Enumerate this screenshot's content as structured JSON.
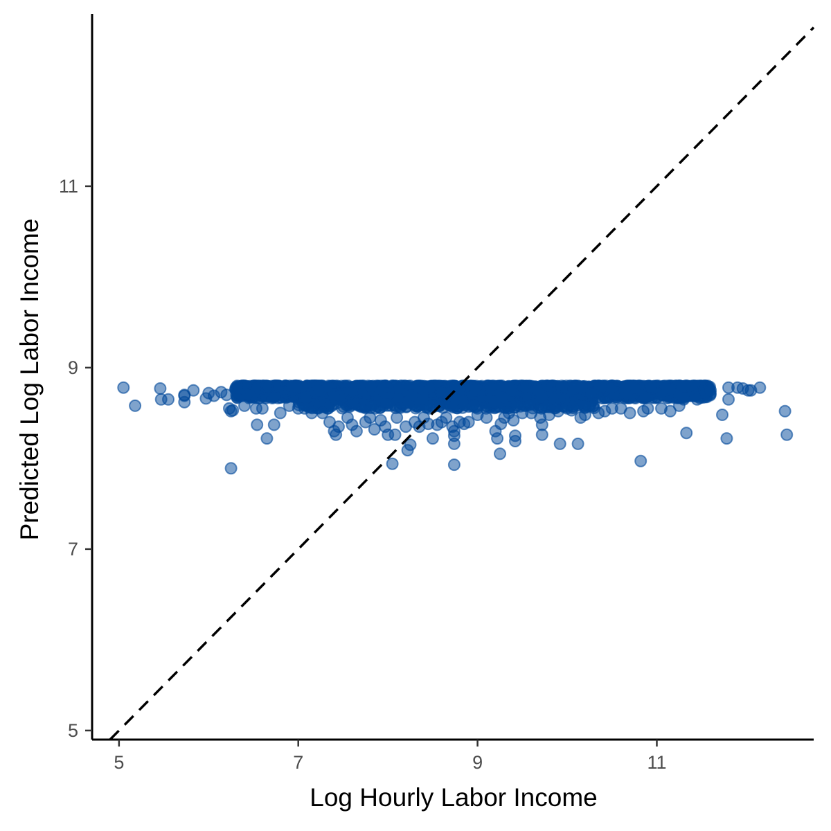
{
  "chart_data": {
    "type": "scatter",
    "title": "",
    "xlabel": "Log Hourly Labor Income",
    "ylabel": "Predicted Log Labor Income",
    "xlim": [
      4.7,
      12.75
    ],
    "ylim": [
      4.9,
      12.9
    ],
    "x_ticks": [
      5,
      7,
      9,
      11
    ],
    "y_ticks": [
      5,
      7,
      9,
      11
    ],
    "grid": false,
    "legend": "none",
    "point_color": "#00479a",
    "point_opacity": 0.5,
    "reference_line": {
      "type": "identity",
      "style": "dashed",
      "color": "#000000"
    },
    "dense_band": {
      "x_min": 6.3,
      "x_max": 11.6,
      "y_min": 8.55,
      "y_max": 8.8,
      "count": 2200
    },
    "points": [
      [
        5.05,
        8.78
      ],
      [
        5.18,
        8.58
      ],
      [
        5.46,
        8.77
      ],
      [
        5.47,
        8.65
      ],
      [
        5.55,
        8.65
      ],
      [
        5.73,
        8.69
      ],
      [
        5.73,
        8.62
      ],
      [
        5.73,
        8.7
      ],
      [
        5.83,
        8.75
      ],
      [
        5.97,
        8.66
      ],
      [
        6.0,
        8.72
      ],
      [
        6.06,
        8.69
      ],
      [
        6.14,
        8.73
      ],
      [
        6.2,
        8.7
      ],
      [
        6.23,
        8.55
      ],
      [
        6.25,
        8.52
      ],
      [
        6.25,
        7.89
      ],
      [
        6.27,
        8.53
      ],
      [
        6.33,
        8.78
      ],
      [
        6.4,
        8.58
      ],
      [
        6.53,
        8.55
      ],
      [
        6.54,
        8.37
      ],
      [
        6.6,
        8.55
      ],
      [
        6.65,
        8.22
      ],
      [
        6.73,
        8.37
      ],
      [
        6.8,
        8.5
      ],
      [
        6.9,
        8.58
      ],
      [
        7.0,
        8.55
      ],
      [
        7.07,
        8.55
      ],
      [
        7.15,
        8.5
      ],
      [
        7.27,
        8.5
      ],
      [
        7.35,
        8.4
      ],
      [
        7.4,
        8.3
      ],
      [
        7.42,
        8.26
      ],
      [
        7.45,
        8.35
      ],
      [
        7.55,
        8.45
      ],
      [
        7.6,
        8.37
      ],
      [
        7.65,
        8.3
      ],
      [
        7.75,
        8.4
      ],
      [
        7.8,
        8.45
      ],
      [
        7.85,
        8.32
      ],
      [
        7.92,
        8.42
      ],
      [
        7.97,
        8.35
      ],
      [
        8.0,
        8.26
      ],
      [
        8.05,
        7.94
      ],
      [
        8.08,
        8.26
      ],
      [
        8.1,
        8.45
      ],
      [
        8.2,
        8.35
      ],
      [
        8.22,
        8.09
      ],
      [
        8.25,
        8.15
      ],
      [
        8.3,
        8.4
      ],
      [
        8.35,
        8.35
      ],
      [
        8.4,
        8.45
      ],
      [
        8.45,
        8.38
      ],
      [
        8.5,
        8.22
      ],
      [
        8.55,
        8.37
      ],
      [
        8.6,
        8.4
      ],
      [
        8.65,
        8.45
      ],
      [
        8.72,
        8.35
      ],
      [
        8.74,
        8.3
      ],
      [
        8.74,
        8.25
      ],
      [
        8.74,
        8.16
      ],
      [
        8.74,
        7.93
      ],
      [
        8.8,
        8.4
      ],
      [
        8.85,
        8.38
      ],
      [
        8.9,
        8.4
      ],
      [
        9.0,
        8.48
      ],
      [
        9.1,
        8.45
      ],
      [
        9.2,
        8.3
      ],
      [
        9.22,
        8.22
      ],
      [
        9.25,
        8.05
      ],
      [
        9.26,
        8.38
      ],
      [
        9.3,
        8.45
      ],
      [
        9.35,
        8.5
      ],
      [
        9.4,
        8.42
      ],
      [
        9.42,
        8.25
      ],
      [
        9.42,
        8.19
      ],
      [
        9.5,
        8.5
      ],
      [
        9.6,
        8.5
      ],
      [
        9.7,
        8.45
      ],
      [
        9.72,
        8.37
      ],
      [
        9.72,
        8.26
      ],
      [
        9.8,
        8.48
      ],
      [
        9.9,
        8.52
      ],
      [
        9.92,
        8.16
      ],
      [
        10.0,
        8.55
      ],
      [
        10.05,
        8.53
      ],
      [
        10.12,
        8.16
      ],
      [
        10.15,
        8.45
      ],
      [
        10.2,
        8.48
      ],
      [
        10.35,
        8.5
      ],
      [
        10.42,
        8.52
      ],
      [
        10.5,
        8.55
      ],
      [
        10.6,
        8.55
      ],
      [
        10.7,
        8.5
      ],
      [
        10.82,
        7.97
      ],
      [
        10.85,
        8.52
      ],
      [
        10.9,
        8.55
      ],
      [
        11.05,
        8.55
      ],
      [
        11.15,
        8.52
      ],
      [
        11.25,
        8.58
      ],
      [
        11.3,
        8.65
      ],
      [
        11.33,
        8.28
      ],
      [
        11.45,
        8.65
      ],
      [
        11.55,
        8.72
      ],
      [
        11.6,
        8.75
      ],
      [
        11.73,
        8.48
      ],
      [
        11.78,
        8.22
      ],
      [
        11.8,
        8.65
      ],
      [
        11.8,
        8.78
      ],
      [
        11.9,
        8.78
      ],
      [
        11.96,
        8.77
      ],
      [
        12.02,
        8.75
      ],
      [
        12.05,
        8.75
      ],
      [
        12.15,
        8.78
      ],
      [
        12.43,
        8.52
      ],
      [
        12.45,
        8.26
      ]
    ]
  }
}
